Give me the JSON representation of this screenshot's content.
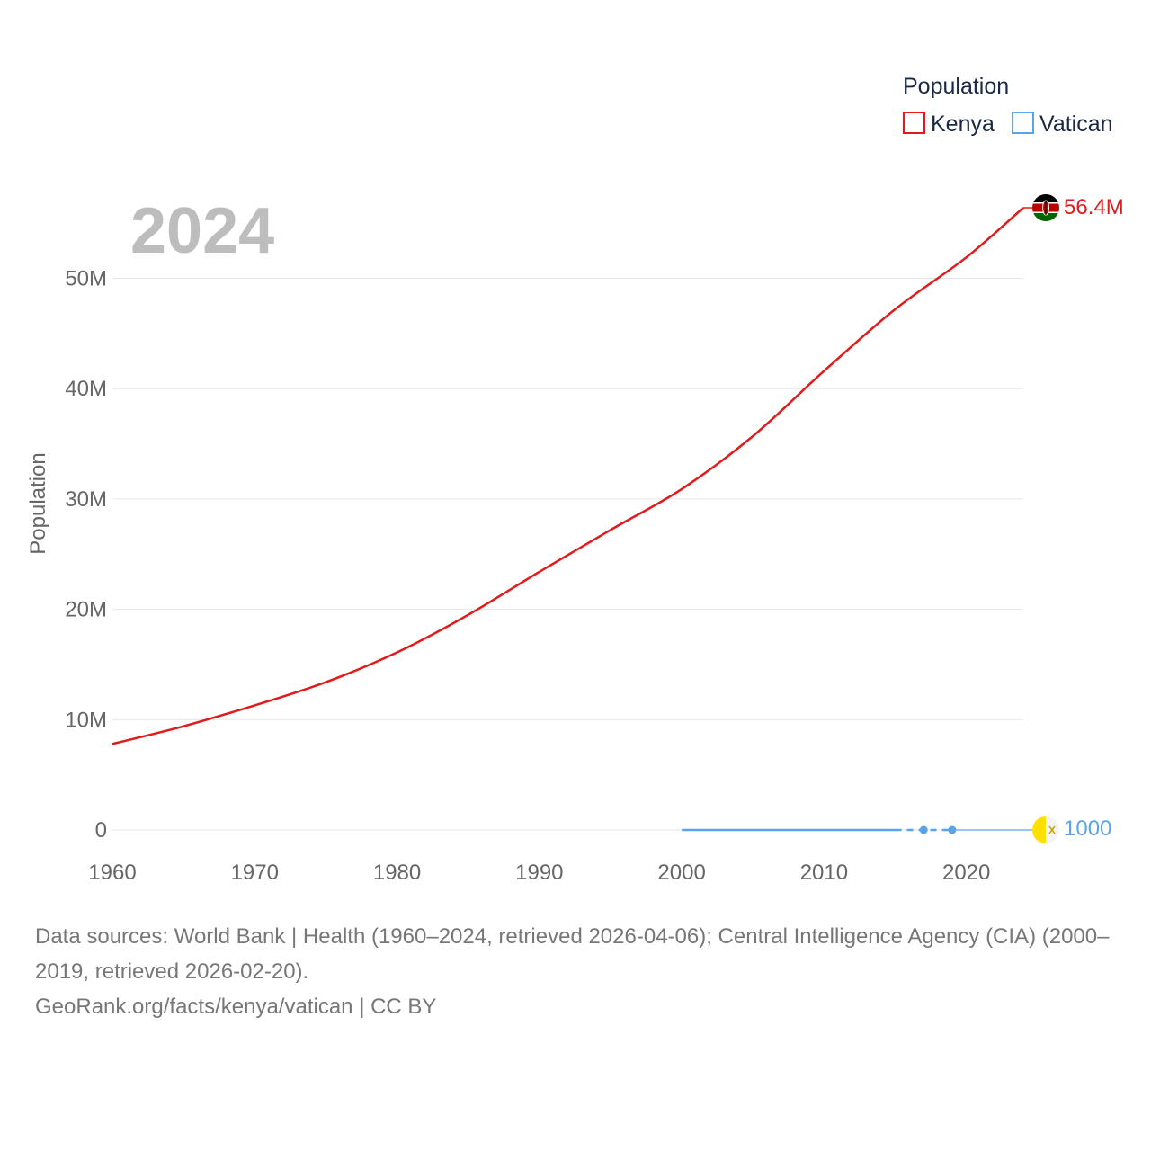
{
  "chart_data": {
    "type": "line",
    "year_label": "2024",
    "ylabel": "Population",
    "xlabel": "",
    "xlim": [
      1960,
      2024
    ],
    "ylim": [
      0,
      56400000
    ],
    "x_ticks": [
      "1960",
      "1970",
      "1980",
      "1990",
      "2000",
      "2010",
      "2020"
    ],
    "y_ticks": [
      {
        "value": 0,
        "label": "0"
      },
      {
        "value": 10000000,
        "label": "10M"
      },
      {
        "value": 20000000,
        "label": "20M"
      },
      {
        "value": 30000000,
        "label": "30M"
      },
      {
        "value": 40000000,
        "label": "40M"
      },
      {
        "value": 50000000,
        "label": "50M"
      }
    ],
    "grid": true,
    "legend": {
      "title": "Population",
      "position": "top-right",
      "items": [
        {
          "name": "Kenya",
          "color": "#e31a1c"
        },
        {
          "name": "Vatican",
          "color": "#5aa3e8"
        }
      ]
    },
    "series": [
      {
        "name": "Kenya",
        "color": "#e31a1c",
        "end_label": "56.4M",
        "flag_icon": "kenya-flag-icon",
        "points": [
          [
            1960,
            7800000
          ],
          [
            1965,
            9400000
          ],
          [
            1970,
            11300000
          ],
          [
            1975,
            13400000
          ],
          [
            1980,
            16100000
          ],
          [
            1985,
            19500000
          ],
          [
            1990,
            23400000
          ],
          [
            1995,
            27200000
          ],
          [
            2000,
            30900000
          ],
          [
            2005,
            35700000
          ],
          [
            2010,
            41600000
          ],
          [
            2015,
            47200000
          ],
          [
            2020,
            51900000
          ],
          [
            2024,
            56400000
          ]
        ]
      },
      {
        "name": "Vatican",
        "color": "#5aa3e8",
        "end_label": "1000",
        "flag_icon": "vatican-flag-icon",
        "points": [
          [
            2000,
            1000
          ],
          [
            2015,
            1000
          ],
          [
            2017,
            1000
          ],
          [
            2019,
            1000
          ],
          [
            2024,
            1000
          ]
        ],
        "markers": [
          [
            2017,
            1000
          ],
          [
            2019,
            1000
          ]
        ]
      }
    ]
  },
  "footer": {
    "sources": "Data sources: World Bank | Health (1960–2024, retrieved 2026-04-06); Central Intelligence Agency (CIA) (2000–2019, retrieved 2026-02-20).",
    "credit": "GeoRank.org/facts/kenya/vatican | CC BY"
  }
}
